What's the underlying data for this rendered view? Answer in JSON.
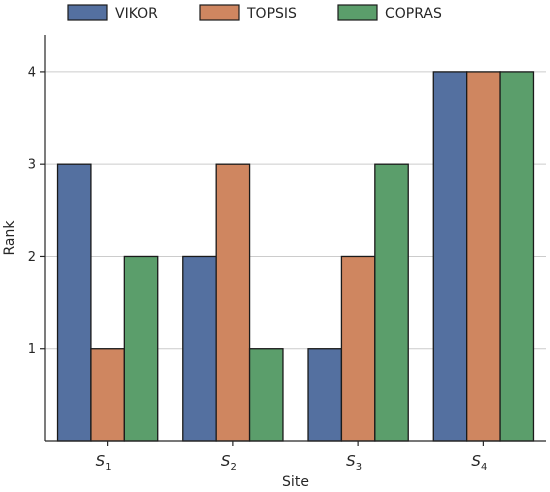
{
  "chart_data": {
    "type": "bar",
    "categories": [
      {
        "main": "S",
        "sub": "1"
      },
      {
        "main": "S",
        "sub": "2"
      },
      {
        "main": "S",
        "sub": "3"
      },
      {
        "main": "S",
        "sub": "4"
      }
    ],
    "series": [
      {
        "name": "VIKOR",
        "color": "#5470a0",
        "values": [
          3,
          2,
          1,
          4
        ]
      },
      {
        "name": "TOPSIS",
        "color": "#cf8660",
        "values": [
          1,
          3,
          2,
          4
        ]
      },
      {
        "name": "COPRAS",
        "color": "#5b9e6b",
        "values": [
          2,
          1,
          3,
          4
        ]
      }
    ],
    "title": "",
    "xlabel": "Site",
    "ylabel": "Rank",
    "ylim": [
      0,
      4.4
    ],
    "yticks": [
      1,
      2,
      3,
      4
    ],
    "grid": "horizontal",
    "legend_position": "top"
  }
}
